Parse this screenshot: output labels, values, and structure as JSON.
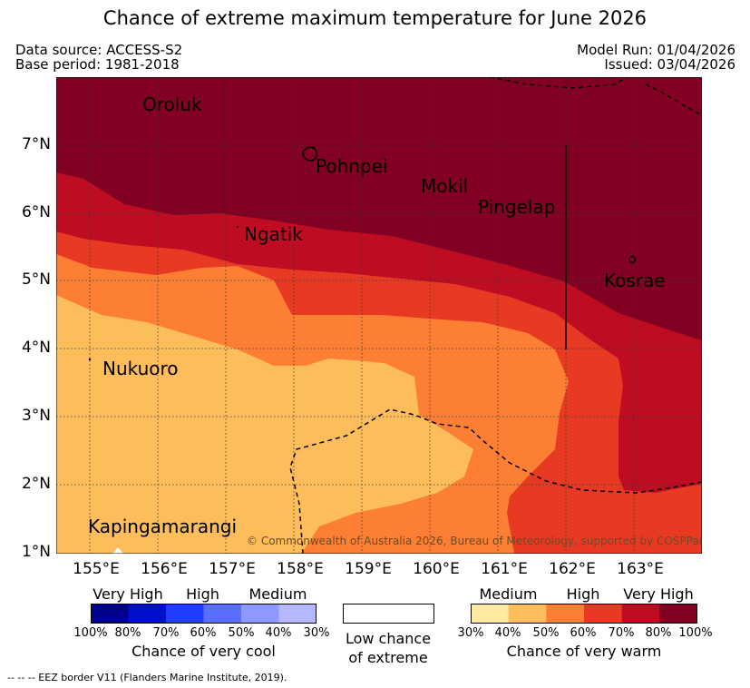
{
  "header": {
    "title": "Chance of extreme maximum temperature for June 2026",
    "data_source": "Data source: ACCESS-S2",
    "base_period": "Base period: 1981-2018",
    "model_run": "Model Run: 01/04/2026",
    "issued": "Issued: 03/04/2026"
  },
  "map": {
    "x_ticks": [
      "155°E",
      "156°E",
      "157°E",
      "158°E",
      "159°E",
      "160°E",
      "161°E",
      "162°E",
      "163°E"
    ],
    "y_ticks": [
      "7°N",
      "6°N",
      "5°N",
      "4°N",
      "3°N",
      "2°N",
      "1°N"
    ],
    "places": {
      "oroluk": "Oroluk",
      "pohnpei": "Pohnpei",
      "mokil": "Mokil",
      "pingelap": "Pingelap",
      "ngatik": "Ngatik",
      "kosrae": "Kosrae",
      "nukuoro": "Nukuoro",
      "kapingamarangi": "Kapingamarangi"
    },
    "copyright": "© Commonwealth of Australia 2026, Bureau of Meteorology, supported by COSPPac"
  },
  "legend": {
    "cool": {
      "categories": [
        "Very High",
        "High",
        "Medium"
      ],
      "ticks": [
        "100%",
        "80%",
        "70%",
        "60%",
        "50%",
        "40%",
        "30%"
      ],
      "title": "Chance of very cool",
      "colors": [
        "#00008f",
        "#0010c8",
        "#1f3cff",
        "#5a6eff",
        "#8f98ff",
        "#b3b8ff"
      ]
    },
    "neutral": {
      "line1": "Low chance",
      "line2": "of extreme"
    },
    "warm": {
      "categories": [
        "Medium",
        "High",
        "Very High"
      ],
      "ticks": [
        "30%",
        "40%",
        "50%",
        "60%",
        "70%",
        "80%",
        "100%"
      ],
      "title": "Chance of very warm",
      "colors": [
        "#ffe9a0",
        "#fcbd5a",
        "#fd7f33",
        "#e83a23",
        "#be0c23",
        "#820021"
      ]
    }
  },
  "footnote": "--  --  -- EEZ border V11 (Flanders Marine Institute, 2019)."
}
